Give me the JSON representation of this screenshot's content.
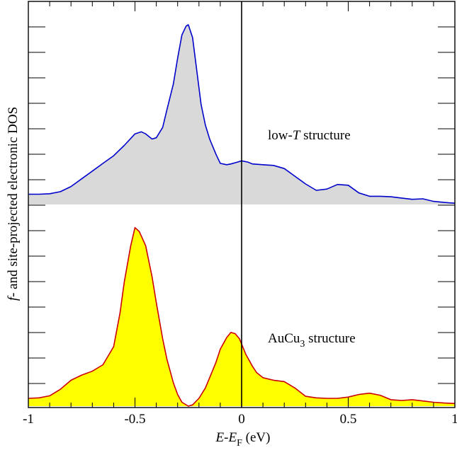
{
  "chart_data": {
    "type": "area",
    "xlabel": {
      "pre": "E",
      "mid": "-E",
      "sub": "F",
      "post": " (eV)"
    },
    "ylabel": {
      "italic": "f",
      "rest": "- and site-projected electronic DOS"
    },
    "xlim": [
      -1,
      1
    ],
    "x_ticks": [
      -1,
      -0.5,
      0,
      0.5,
      1
    ],
    "x_tick_labels": [
      "-1",
      "-0.5",
      "0",
      "0.5",
      "1"
    ],
    "grid": false,
    "panels": [
      {
        "name": "low-T",
        "label": {
          "pre": "low-",
          "italic": "T",
          "post": " structure"
        },
        "ylim": [
          0,
          7
        ],
        "fill_color": "#d9d9d9",
        "line_color": "#0000cc",
        "x": [
          -1.0,
          -0.95,
          -0.9,
          -0.85,
          -0.8,
          -0.75,
          -0.7,
          -0.65,
          -0.6,
          -0.55,
          -0.5,
          -0.47,
          -0.45,
          -0.42,
          -0.4,
          -0.37,
          -0.35,
          -0.32,
          -0.3,
          -0.28,
          -0.26,
          -0.25,
          -0.23,
          -0.21,
          -0.19,
          -0.17,
          -0.15,
          -0.12,
          -0.1,
          -0.07,
          -0.05,
          -0.02,
          0.0,
          0.03,
          0.05,
          0.1,
          0.15,
          0.2,
          0.25,
          0.3,
          0.35,
          0.4,
          0.45,
          0.5,
          0.55,
          0.6,
          0.65,
          0.7,
          0.75,
          0.8,
          0.85,
          0.9,
          0.95,
          1.0
        ],
        "y": [
          0.4,
          0.4,
          0.42,
          0.5,
          0.7,
          1.0,
          1.3,
          1.6,
          1.9,
          2.3,
          2.75,
          2.83,
          2.75,
          2.55,
          2.6,
          3.0,
          3.7,
          4.7,
          5.7,
          6.6,
          6.95,
          7.0,
          6.5,
          5.2,
          3.9,
          3.1,
          2.55,
          1.95,
          1.6,
          1.55,
          1.58,
          1.65,
          1.7,
          1.65,
          1.58,
          1.55,
          1.52,
          1.4,
          1.1,
          0.8,
          0.55,
          0.6,
          0.78,
          0.75,
          0.45,
          0.32,
          0.32,
          0.3,
          0.25,
          0.2,
          0.22,
          0.12,
          0.08,
          0.05
        ]
      },
      {
        "name": "AuCu3",
        "label": {
          "pre": "AuCu",
          "sub": "3",
          "post": " structure"
        },
        "ylim": [
          0,
          7
        ],
        "fill_color": "#ffff00",
        "line_color": "#cc0000",
        "x": [
          -1.0,
          -0.95,
          -0.9,
          -0.85,
          -0.8,
          -0.75,
          -0.7,
          -0.65,
          -0.6,
          -0.57,
          -0.55,
          -0.52,
          -0.5,
          -0.48,
          -0.45,
          -0.42,
          -0.4,
          -0.37,
          -0.35,
          -0.32,
          -0.3,
          -0.28,
          -0.25,
          -0.23,
          -0.2,
          -0.17,
          -0.15,
          -0.12,
          -0.1,
          -0.07,
          -0.05,
          -0.03,
          -0.01,
          0.0,
          0.02,
          0.05,
          0.07,
          0.1,
          0.15,
          0.2,
          0.25,
          0.3,
          0.35,
          0.4,
          0.45,
          0.5,
          0.55,
          0.6,
          0.65,
          0.7,
          0.75,
          0.8,
          0.85,
          0.9,
          0.95,
          1.0
        ],
        "y": [
          0.3,
          0.32,
          0.4,
          0.65,
          1.0,
          1.2,
          1.35,
          1.6,
          2.3,
          3.6,
          4.8,
          6.2,
          6.9,
          6.75,
          6.2,
          5.0,
          4.0,
          2.6,
          1.8,
          0.9,
          0.45,
          0.15,
          0.0,
          0.05,
          0.3,
          0.7,
          1.1,
          1.7,
          2.2,
          2.65,
          2.85,
          2.8,
          2.6,
          2.4,
          2.0,
          1.55,
          1.3,
          1.1,
          1.0,
          0.95,
          0.7,
          0.38,
          0.32,
          0.3,
          0.3,
          0.35,
          0.45,
          0.5,
          0.42,
          0.25,
          0.22,
          0.25,
          0.2,
          0.15,
          0.12,
          0.1
        ]
      }
    ]
  }
}
